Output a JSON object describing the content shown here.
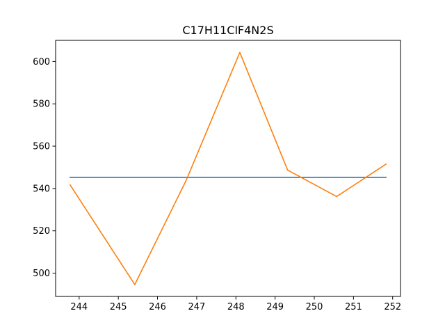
{
  "chart_data": {
    "type": "line",
    "title": "C17H11ClF4N2S",
    "xlabel": "",
    "ylabel": "",
    "xlim": [
      243.4,
      252.2
    ],
    "ylim": [
      489,
      610
    ],
    "x_ticks": [
      244,
      245,
      246,
      247,
      248,
      249,
      250,
      251,
      252
    ],
    "y_ticks": [
      500,
      520,
      540,
      560,
      580,
      600
    ],
    "grid": false,
    "legend": "none",
    "series": [
      {
        "color": "#1f77b4",
        "points": [
          {
            "x": 243.77,
            "y": 545.3
          },
          {
            "x": 251.83,
            "y": 545.3
          }
        ]
      },
      {
        "color": "#ff7f0e",
        "points": [
          {
            "x": 243.77,
            "y": 541.7
          },
          {
            "x": 245.42,
            "y": 494.6
          },
          {
            "x": 246.73,
            "y": 543.8
          },
          {
            "x": 248.1,
            "y": 604.3
          },
          {
            "x": 249.32,
            "y": 548.7
          },
          {
            "x": 250.57,
            "y": 536.2
          },
          {
            "x": 251.83,
            "y": 551.5
          }
        ]
      }
    ]
  }
}
